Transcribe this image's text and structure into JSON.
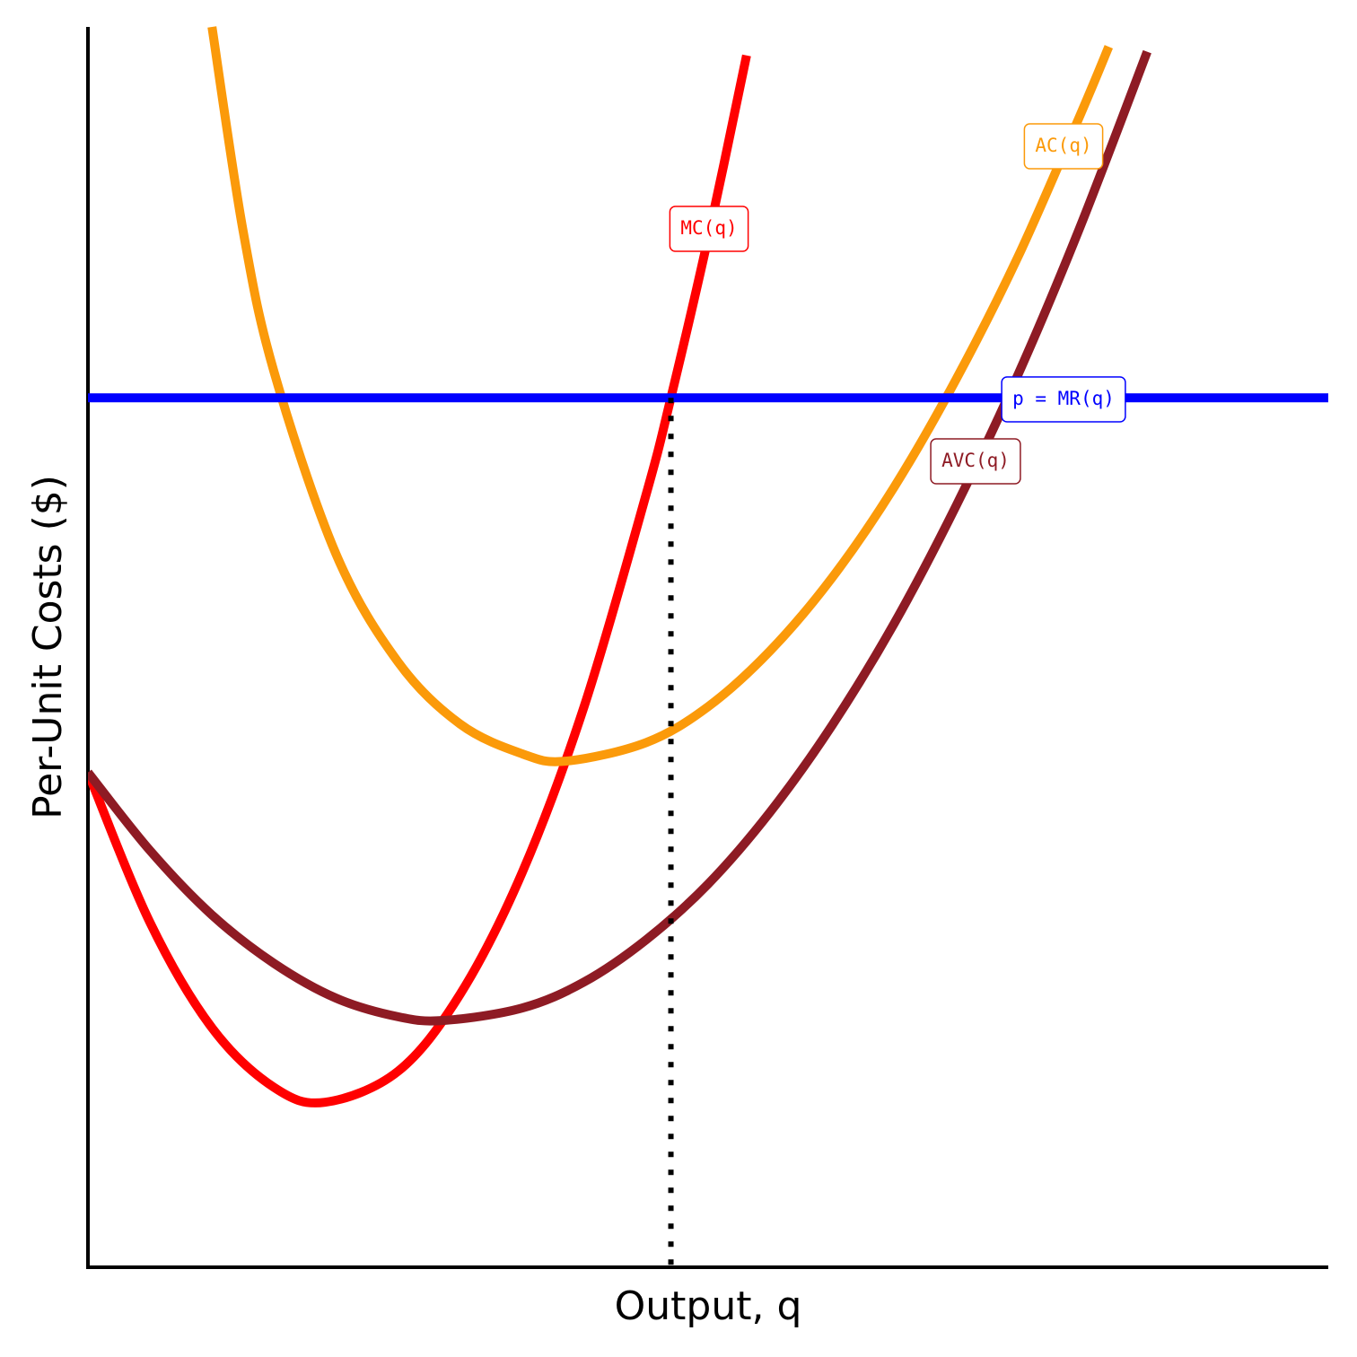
{
  "chart_data": {
    "type": "line",
    "x_axis_label": "Output, q",
    "y_axis_label": "Per-Unit Costs ($)",
    "xlim": [
      0,
      10
    ],
    "ylim": [
      0,
      10
    ],
    "series": [
      {
        "name": "MC(q)",
        "color": "#ff0000",
        "x": [
          0,
          0.5,
          1,
          1.5,
          1.91,
          2.5,
          3,
          3.5,
          4,
          4.5,
          4.7,
          5,
          5.31
        ],
        "values": [
          3.99,
          2.78,
          1.93,
          1.45,
          1.33,
          1.58,
          2.2,
          3.18,
          4.52,
          6.23,
          7.01,
          8.3,
          9.77
        ]
      },
      {
        "name": "AC(q)",
        "color": "#fb9a0a",
        "x": [
          1,
          1.25,
          1.5,
          2,
          2.5,
          3,
          3.5,
          3.85,
          4.5,
          5,
          5.5,
          6,
          6.5,
          7,
          7.5,
          8,
          8.23
        ],
        "values": [
          10,
          8.36,
          7.22,
          5.75,
          4.88,
          4.38,
          4.14,
          4.08,
          4.23,
          4.52,
          4.97,
          5.56,
          6.29,
          7.16,
          8.15,
          9.29,
          9.84
        ]
      },
      {
        "name": "p = MR(q)",
        "color": "#0000ff",
        "x": [
          0,
          10
        ],
        "values": [
          7.01,
          7.01
        ]
      },
      {
        "name": "AVC(q)",
        "color": "#8e1b24",
        "x": [
          0,
          0.5,
          1,
          1.5,
          2,
          2.5,
          2.87,
          3.5,
          4,
          4.5,
          5,
          5.5,
          6,
          6.5,
          7,
          7.5,
          8,
          8.54
        ],
        "values": [
          3.99,
          3.36,
          2.84,
          2.45,
          2.17,
          2.02,
          1.99,
          2.09,
          2.3,
          2.64,
          3.09,
          3.67,
          4.37,
          5.19,
          6.14,
          7.2,
          8.39,
          9.8
        ]
      }
    ],
    "dropline": {
      "x": 4.7,
      "y": 7.01,
      "color": "#000000"
    }
  }
}
